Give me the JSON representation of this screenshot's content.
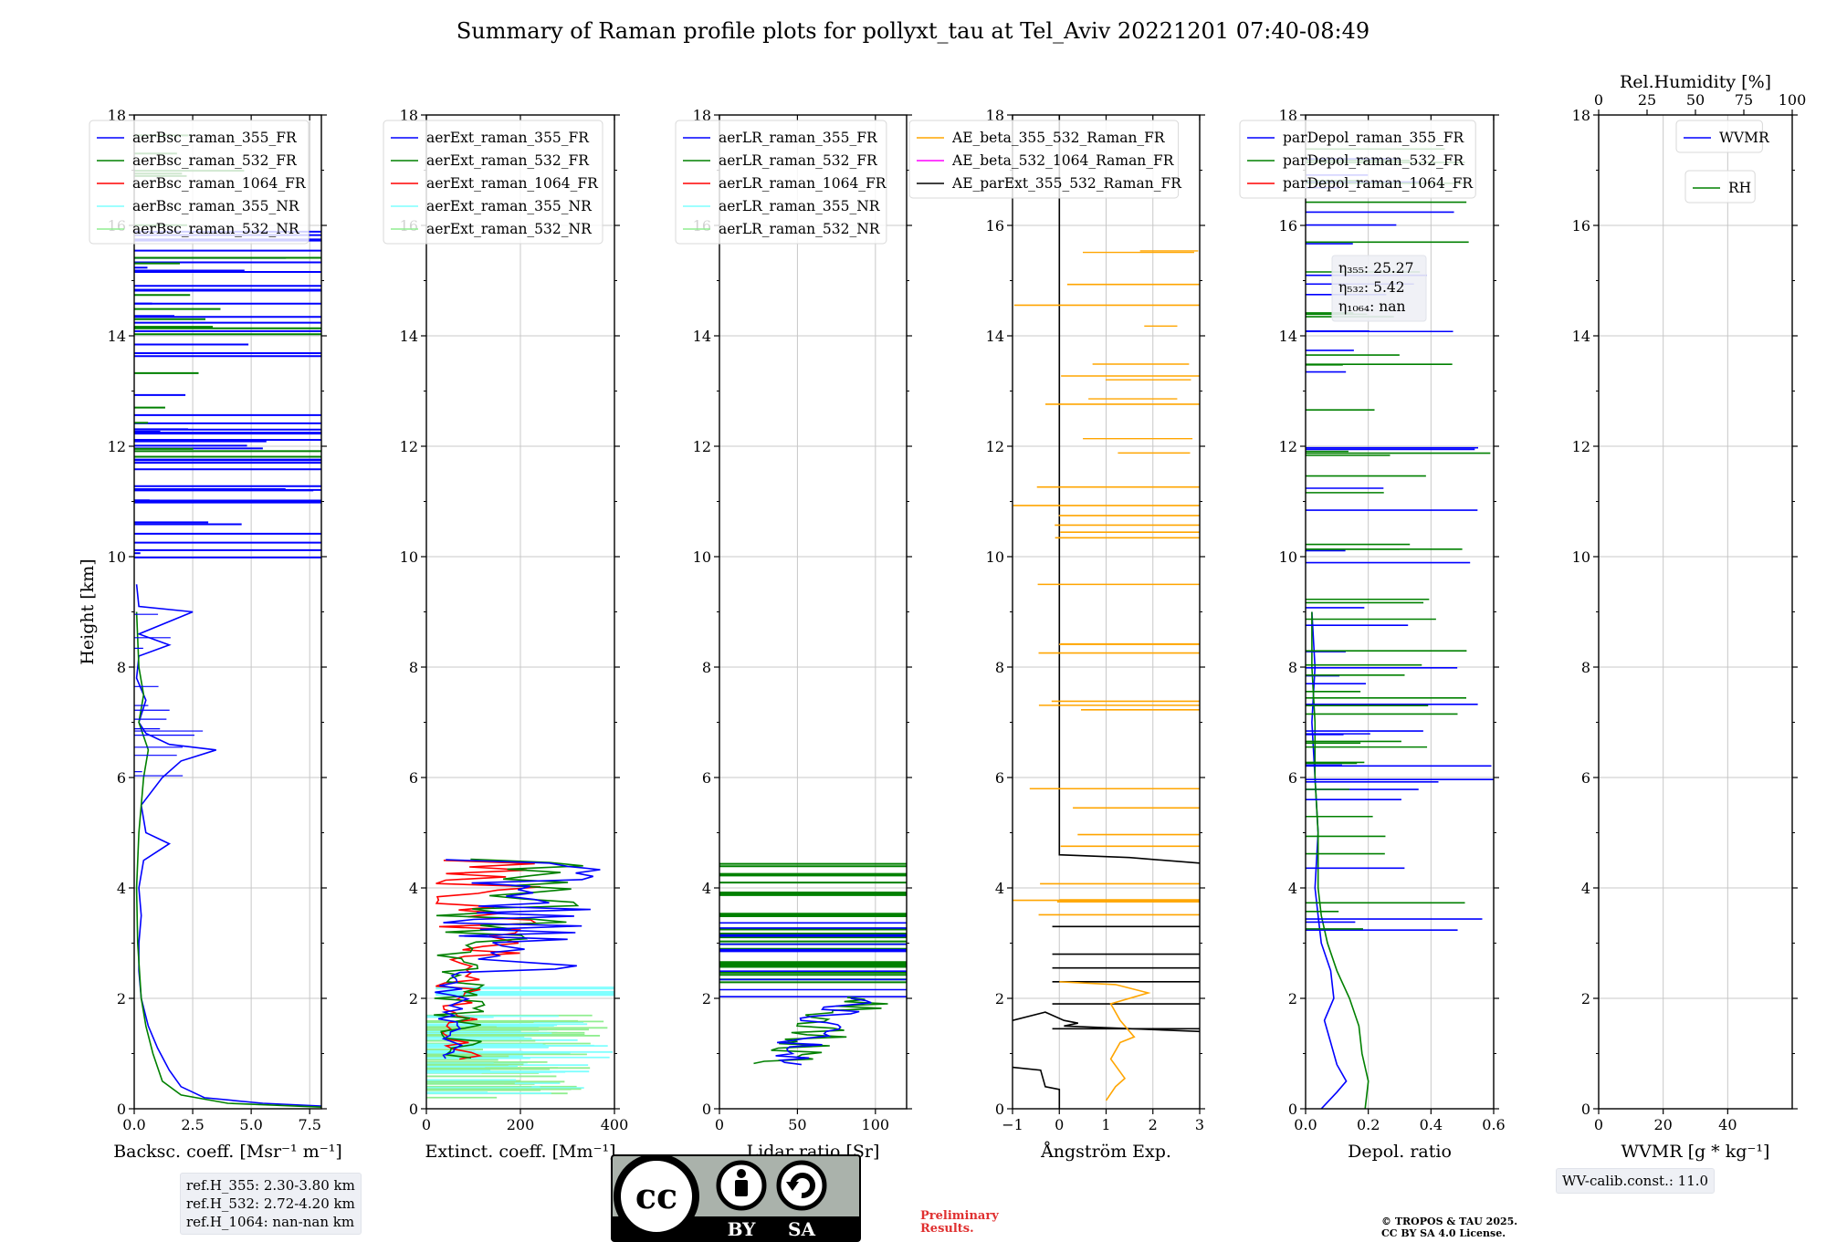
{
  "figure": {
    "title": "Summary of Raman profile plots for pollyxt_tau at Tel_Aviv 20221201 07:40-08:49",
    "ref_heights": [
      "ref.H_355: 2.30-3.80 km",
      "ref.H_532: 2.72-4.20 km",
      "ref.H_1064: nan-nan km"
    ],
    "wv_calib": "WV-calib.const.: 11.0",
    "preliminary": [
      "Preliminary",
      "Results."
    ],
    "copyright": [
      "© TROPOS & TAU 2025.",
      "CC BY SA 4.0 License."
    ],
    "license_badge": {
      "cc": "cc",
      "by": "BY",
      "sa": "SA"
    },
    "colors": {
      "blue": "#0000ff",
      "green": "#008000",
      "red": "#ff0000",
      "cyan": "#7fffff",
      "lightgreen": "#90ee90",
      "orange": "#ffa500",
      "magenta": "#ff00ff",
      "black": "#000000",
      "grid": "#c8c8c8",
      "box": "#eef0f5"
    }
  },
  "chart_data": [
    {
      "id": "bsc",
      "type": "line",
      "ylabel": "Height [km]",
      "ylim": [
        0,
        18
      ],
      "yticks": [
        0,
        2,
        4,
        6,
        8,
        10,
        12,
        14,
        16,
        18
      ],
      "xlabel": "Backsc. coeff. [Msr⁻¹ m⁻¹]",
      "xlim": [
        0,
        8
      ],
      "xticks": [
        0,
        2.5,
        5,
        7.5
      ],
      "xticklabels": [
        "0.0",
        "2.5",
        "5.0",
        "7.5"
      ],
      "legend": [
        {
          "label": "aerBsc_raman_355_FR",
          "color": "#0000ff"
        },
        {
          "label": "aerBsc_raman_532_FR",
          "color": "#008000"
        },
        {
          "label": "aerBsc_raman_1064_FR",
          "color": "#ff0000"
        },
        {
          "label": "aerBsc_raman_355_NR",
          "color": "#7fffff"
        },
        {
          "label": "aerBsc_raman_532_NR",
          "color": "#90ee90"
        }
      ],
      "series": [
        {
          "name": "aerBsc_raman_355_FR",
          "color": "#0000ff",
          "points": [
            [
              8,
              0.05
            ],
            [
              5.5,
              0.1
            ],
            [
              3,
              0.2
            ],
            [
              2,
              0.4
            ],
            [
              1.5,
              0.7
            ],
            [
              1,
              1.1
            ],
            [
              0.6,
              1.5
            ],
            [
              0.3,
              2
            ],
            [
              0.2,
              2.5
            ],
            [
              0.2,
              3
            ],
            [
              0.3,
              3.5
            ],
            [
              0.2,
              4
            ],
            [
              0.4,
              4.5
            ],
            [
              1.5,
              4.8
            ],
            [
              0.5,
              5
            ],
            [
              0.3,
              5.5
            ],
            [
              1.2,
              6
            ],
            [
              2,
              6.3
            ],
            [
              3.5,
              6.5
            ],
            [
              1.5,
              6.6
            ],
            [
              0.5,
              6.8
            ],
            [
              0.2,
              7
            ],
            [
              0.5,
              7.4
            ],
            [
              0.1,
              7.8
            ],
            [
              0.2,
              8.2
            ],
            [
              1.5,
              8.4
            ],
            [
              0.2,
              8.6
            ],
            [
              2.5,
              9
            ],
            [
              0.2,
              9.1
            ],
            [
              0.1,
              9.5
            ]
          ]
        },
        {
          "name": "aerBsc_raman_532_FR",
          "color": "#008000",
          "points": [
            [
              8,
              0.03
            ],
            [
              4,
              0.1
            ],
            [
              2,
              0.25
            ],
            [
              1.2,
              0.5
            ],
            [
              0.8,
              1
            ],
            [
              0.5,
              1.5
            ],
            [
              0.3,
              2
            ],
            [
              0.15,
              3
            ],
            [
              0.1,
              4
            ],
            [
              0.2,
              5
            ],
            [
              0.3,
              5.5
            ],
            [
              0.4,
              6
            ],
            [
              0.6,
              6.5
            ],
            [
              0.2,
              7
            ],
            [
              0.4,
              7.5
            ],
            [
              0.2,
              8
            ],
            [
              0.1,
              9
            ]
          ]
        }
      ],
      "spikes_note": "horizontal outlier lines above 9 km (blue 355, green 532)"
    },
    {
      "id": "ext",
      "type": "line",
      "xlabel": "Extinct. coeff. [Mm⁻¹]",
      "xlim": [
        0,
        400
      ],
      "xticks": [
        0,
        200,
        400
      ],
      "xticklabels": [
        "0",
        "200",
        "400"
      ],
      "ylim": [
        0,
        18
      ],
      "legend": [
        {
          "label": "aerExt_raman_355_FR",
          "color": "#0000ff"
        },
        {
          "label": "aerExt_raman_532_FR",
          "color": "#008000"
        },
        {
          "label": "aerExt_raman_1064_FR",
          "color": "#ff0000"
        },
        {
          "label": "aerExt_raman_355_NR",
          "color": "#7fffff"
        },
        {
          "label": "aerExt_raman_532_NR",
          "color": "#90ee90"
        }
      ]
    },
    {
      "id": "lr",
      "type": "line",
      "xlabel": "Lidar ratio [Sr]",
      "xlim": [
        0,
        120
      ],
      "xticks": [
        0,
        50,
        100
      ],
      "xticklabels": [
        "0",
        "50",
        "100"
      ],
      "ylim": [
        0,
        18
      ],
      "legend": [
        {
          "label": "aerLR_raman_355_FR",
          "color": "#0000ff"
        },
        {
          "label": "aerLR_raman_532_FR",
          "color": "#008000"
        },
        {
          "label": "aerLR_raman_1064_FR",
          "color": "#ff0000"
        },
        {
          "label": "aerLR_raman_355_NR",
          "color": "#7fffff"
        },
        {
          "label": "aerLR_raman_532_NR",
          "color": "#90ee90"
        }
      ]
    },
    {
      "id": "ae",
      "type": "line",
      "xlabel": "Ångström Exp.",
      "xlim": [
        -1,
        3
      ],
      "xticks": [
        -1,
        0,
        1,
        2,
        3
      ],
      "xticklabels": [
        "−1",
        "0",
        "1",
        "2",
        "3"
      ],
      "ylim": [
        0,
        18
      ],
      "legend": [
        {
          "label": "AE_beta_355_532_Raman_FR",
          "color": "#ffa500"
        },
        {
          "label": "AE_beta_532_1064_Raman_FR",
          "color": "#ff00ff"
        },
        {
          "label": "AE_parExt_355_532_Raman_FR",
          "color": "#000000"
        }
      ]
    },
    {
      "id": "depol",
      "type": "line",
      "xlabel": "Depol. ratio",
      "xlim": [
        0,
        0.6
      ],
      "xticks": [
        0,
        0.2,
        0.4,
        0.6
      ],
      "xticklabels": [
        "0.0",
        "0.2",
        "0.4",
        "0.6"
      ],
      "ylim": [
        0,
        18
      ],
      "legend": [
        {
          "label": "parDepol_raman_355_FR",
          "color": "#0000ff"
        },
        {
          "label": "parDepol_raman_532_FR",
          "color": "#008000"
        },
        {
          "label": "parDepol_raman_1064_FR",
          "color": "#ff0000"
        }
      ],
      "eta": [
        {
          "label": "η₃₅₅: 25.27"
        },
        {
          "label": "η₅₃₂: 5.42"
        },
        {
          "label": "η₁₀₆₄: nan"
        }
      ],
      "series": [
        {
          "name": "parDepol_raman_355_FR",
          "color": "#0000ff",
          "points": [
            [
              0.05,
              0
            ],
            [
              0.1,
              0.3
            ],
            [
              0.13,
              0.5
            ],
            [
              0.1,
              0.8
            ],
            [
              0.08,
              1.2
            ],
            [
              0.06,
              1.6
            ],
            [
              0.09,
              2
            ],
            [
              0.08,
              2.5
            ],
            [
              0.05,
              3
            ],
            [
              0.04,
              3.5
            ],
            [
              0.03,
              4
            ],
            [
              0.04,
              5
            ],
            [
              0.03,
              6
            ],
            [
              0.02,
              7
            ],
            [
              0.03,
              8
            ],
            [
              0.02,
              9
            ]
          ]
        },
        {
          "name": "parDepol_raman_532_FR",
          "color": "#008000",
          "points": [
            [
              0.19,
              0
            ],
            [
              0.2,
              0.5
            ],
            [
              0.18,
              1
            ],
            [
              0.17,
              1.5
            ],
            [
              0.14,
              2
            ],
            [
              0.1,
              2.5
            ],
            [
              0.07,
              3
            ],
            [
              0.05,
              3.5
            ],
            [
              0.04,
              4
            ],
            [
              0.04,
              5
            ],
            [
              0.03,
              6
            ],
            [
              0.03,
              7
            ],
            [
              0.02,
              8
            ],
            [
              0.02,
              9
            ]
          ]
        }
      ]
    },
    {
      "id": "wv",
      "type": "line",
      "xlabel": "WVMR [g * kg⁻¹]",
      "xlim": [
        0,
        60
      ],
      "xticks": [
        0,
        20,
        40
      ],
      "xticklabels": [
        "0",
        "20",
        "40"
      ],
      "ylim": [
        0,
        18
      ],
      "top_xlabel": "Rel.Humidity [%]",
      "top_xlim": [
        0,
        100
      ],
      "top_xticks": [
        0,
        25,
        50,
        75,
        100
      ],
      "top_xticklabels": [
        "0",
        "25",
        "50",
        "75",
        "100"
      ],
      "legend": [
        {
          "label": "WVMR",
          "color": "#0000ff"
        }
      ],
      "legend2": [
        {
          "label": "RH",
          "color": "#008000"
        }
      ]
    }
  ]
}
